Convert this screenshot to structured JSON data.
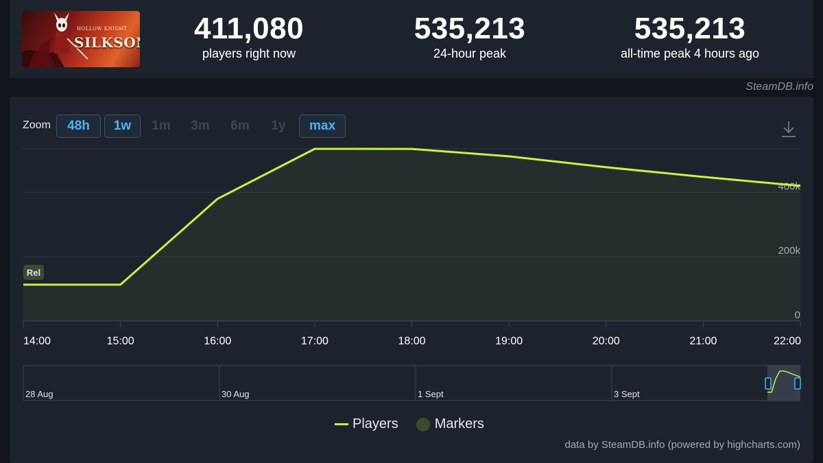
{
  "header": {
    "game_title_art": "Hollow Knight Silksong",
    "stats": [
      {
        "value": "411,080",
        "label": "players right now"
      },
      {
        "value": "535,213",
        "label": "24-hour peak"
      },
      {
        "value": "535,213",
        "label": "all-time peak 4 hours ago"
      }
    ],
    "credit": "SteamDB.info"
  },
  "zoom": {
    "label": "Zoom",
    "buttons": [
      {
        "label": "48h",
        "active": true
      },
      {
        "label": "1w",
        "active": true
      },
      {
        "label": "1m",
        "active": false
      },
      {
        "label": "3m",
        "active": false
      },
      {
        "label": "6m",
        "active": false
      },
      {
        "label": "1y",
        "active": false
      },
      {
        "label": "max",
        "active": true
      }
    ],
    "export_icon": "download-icon"
  },
  "chart_data": {
    "type": "line",
    "x": [
      "14:00",
      "15:00",
      "16:00",
      "17:00",
      "18:00",
      "19:00",
      "20:00",
      "21:00",
      "22:00"
    ],
    "series": [
      {
        "name": "Players",
        "color": "#c7f441",
        "values": [
          113000,
          113000,
          380000,
          535213,
          535000,
          512000,
          478000,
          448000,
          420000
        ]
      }
    ],
    "ylim": [
      0,
      535213
    ],
    "y_ticks": [
      {
        "value": 0,
        "label": "0"
      },
      {
        "value": 200000,
        "label": "200k"
      },
      {
        "value": 400000,
        "label": "400k"
      }
    ],
    "annotations": [
      {
        "label": "Rel",
        "x": "14:00"
      }
    ],
    "navigator_labels": [
      "28 Aug",
      "30 Aug",
      "1 Sept",
      "3 Sept"
    ],
    "legend": [
      {
        "name": "Players",
        "type": "line",
        "color": "#c7f441"
      },
      {
        "name": "Markers",
        "type": "dot",
        "color": "#3c4a2e"
      }
    ],
    "grid": true,
    "legend_position": "bottom-center",
    "credit": "data by SteamDB.info (powered by highcharts.com)"
  }
}
